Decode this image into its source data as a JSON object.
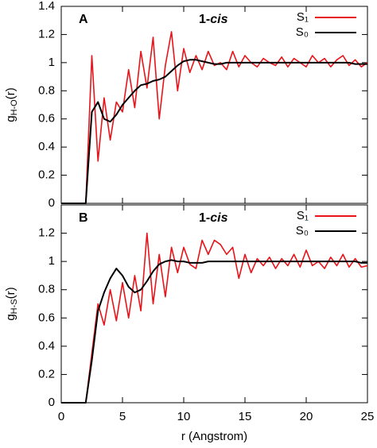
{
  "chart_data": [
    {
      "type": "line",
      "panel_label": "A",
      "title": [
        "1-",
        "cis"
      ],
      "y_label": [
        "g",
        "H-O",
        "(r)"
      ],
      "x": [
        0,
        0.5,
        1,
        1.5,
        2,
        2.5,
        3,
        3.5,
        4,
        4.5,
        5,
        5.5,
        6,
        6.5,
        7,
        7.5,
        8,
        8.5,
        9,
        9.5,
        10,
        10.5,
        11,
        11.5,
        12,
        12.5,
        13,
        13.5,
        14,
        14.5,
        15,
        15.5,
        16,
        16.5,
        17,
        17.5,
        18,
        18.5,
        19,
        19.5,
        20,
        20.5,
        21,
        21.5,
        22,
        22.5,
        23,
        23.5,
        24,
        24.5,
        25
      ],
      "series": [
        {
          "name": "S₁",
          "color": "#e8141a",
          "values": [
            0,
            0,
            0,
            0,
            0,
            1.05,
            0.3,
            0.75,
            0.45,
            0.72,
            0.65,
            0.95,
            0.68,
            1.08,
            0.82,
            1.18,
            0.6,
            0.98,
            1.22,
            0.8,
            1.1,
            0.93,
            1.05,
            0.95,
            1.08,
            0.98,
            1.0,
            0.95,
            1.08,
            0.97,
            1.05,
            1.0,
            0.97,
            1.03,
            1.0,
            0.98,
            1.04,
            0.97,
            1.03,
            1.0,
            0.97,
            1.05,
            1.0,
            1.03,
            0.97,
            1.02,
            1.05,
            0.98,
            1.02,
            0.97,
            1.0
          ]
        },
        {
          "name": "S₀",
          "color": "#000000",
          "values": [
            0,
            0,
            0,
            0,
            0,
            0.65,
            0.72,
            0.6,
            0.58,
            0.63,
            0.7,
            0.75,
            0.8,
            0.84,
            0.85,
            0.87,
            0.88,
            0.9,
            0.94,
            0.98,
            1.01,
            1.02,
            1.02,
            1.01,
            1.0,
            0.99,
            0.99,
            1.0,
            1.0,
            1.0,
            1.0,
            1.0,
            1.0,
            1.0,
            1.0,
            1.0,
            1.0,
            1.0,
            1.0,
            1.0,
            1.0,
            1.0,
            1.0,
            1.0,
            1.0,
            1.0,
            1.0,
            1.0,
            0.99,
            0.99,
            0.99
          ]
        }
      ],
      "xlim": [
        0,
        25
      ],
      "xticks": [
        0,
        5,
        10,
        15,
        20,
        25
      ],
      "x_tick_labels": false,
      "ylim": [
        0,
        1.4
      ],
      "yticks": [
        0,
        0.2,
        0.4,
        0.6,
        0.8,
        1,
        1.2,
        1.4
      ]
    },
    {
      "type": "line",
      "panel_label": "B",
      "title": [
        "1-",
        "cis"
      ],
      "y_label": [
        "g",
        "H-S",
        "(r)"
      ],
      "x_label": "r (Angstrom)",
      "x": [
        0,
        0.5,
        1,
        1.5,
        2,
        2.5,
        3,
        3.5,
        4,
        4.5,
        5,
        5.5,
        6,
        6.5,
        7,
        7.5,
        8,
        8.5,
        9,
        9.5,
        10,
        10.5,
        11,
        11.5,
        12,
        12.5,
        13,
        13.5,
        14,
        14.5,
        15,
        15.5,
        16,
        16.5,
        17,
        17.5,
        18,
        18.5,
        19,
        19.5,
        20,
        20.5,
        21,
        21.5,
        22,
        22.5,
        23,
        23.5,
        24,
        24.5,
        25
      ],
      "series": [
        {
          "name": "S₁",
          "color": "#e8141a",
          "values": [
            0,
            0,
            0,
            0,
            0,
            0.35,
            0.7,
            0.55,
            0.8,
            0.58,
            0.85,
            0.6,
            0.9,
            0.65,
            1.2,
            0.7,
            1.05,
            0.75,
            1.1,
            0.92,
            1.1,
            0.98,
            0.95,
            1.15,
            1.05,
            1.15,
            1.12,
            1.05,
            1.1,
            0.88,
            1.05,
            0.92,
            1.02,
            0.97,
            1.03,
            0.95,
            1.02,
            0.97,
            1.05,
            0.96,
            1.08,
            0.97,
            1.0,
            0.95,
            1.03,
            0.97,
            1.05,
            0.96,
            1.02,
            0.96,
            0.97
          ]
        },
        {
          "name": "S₀",
          "color": "#000000",
          "values": [
            0,
            0,
            0,
            0,
            0,
            0.3,
            0.65,
            0.78,
            0.88,
            0.95,
            0.9,
            0.82,
            0.78,
            0.8,
            0.86,
            0.93,
            0.98,
            1.0,
            1.01,
            1.0,
            1.0,
            0.99,
            0.99,
            0.99,
            1.0,
            1.0,
            1.0,
            1.0,
            1.0,
            1.0,
            1.0,
            1.0,
            1.0,
            1.0,
            1.0,
            1.0,
            1.0,
            1.0,
            1.0,
            1.0,
            1.0,
            1.0,
            1.0,
            1.0,
            1.0,
            1.0,
            1.0,
            1.0,
            1.0,
            0.99,
            0.99
          ]
        }
      ],
      "xlim": [
        0,
        25
      ],
      "xticks": [
        0,
        5,
        10,
        15,
        20,
        25
      ],
      "x_tick_labels": true,
      "ylim": [
        0,
        1.4
      ],
      "yticks": [
        0,
        0.2,
        0.4,
        0.6,
        0.8,
        1,
        1.2
      ]
    }
  ]
}
